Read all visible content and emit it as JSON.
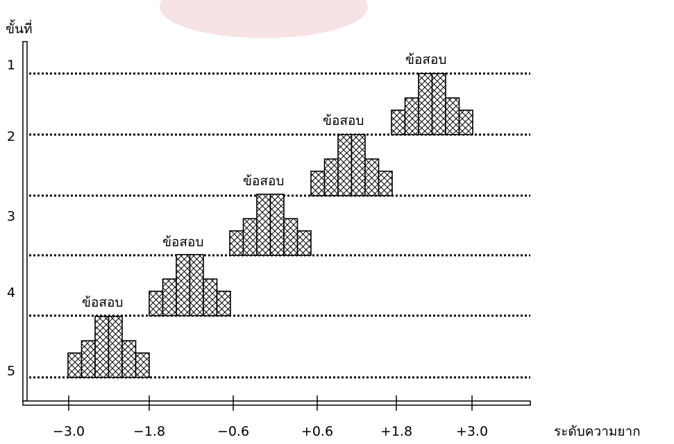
{
  "diagram": {
    "y_axis_label": "ขั้นที่",
    "x_axis_label": "ระดับความยาก",
    "levels": [
      "1",
      "2",
      "3",
      "4",
      "5"
    ],
    "x_ticks": [
      "−3.0",
      "−1.8",
      "−0.6",
      "+0.6",
      "+1.8",
      "+3.0"
    ],
    "item_banks": [
      {
        "label": "ข้อสอบ",
        "level": 5,
        "counts": [
          2,
          3,
          5,
          5,
          3,
          2
        ]
      },
      {
        "label": "ข้อสอบ",
        "level": 4,
        "counts": [
          2,
          3,
          5,
          5,
          3,
          2
        ]
      },
      {
        "label": "ข้อสอบ",
        "level": 3,
        "counts": [
          2,
          3,
          5,
          5,
          3,
          2
        ]
      },
      {
        "label": "ข้อสอบ",
        "level": 2,
        "counts": [
          2,
          3,
          5,
          5,
          3,
          2
        ]
      },
      {
        "label": "ข้อสอบ",
        "level": 1,
        "counts": [
          2,
          3,
          5,
          5,
          3,
          2
        ]
      }
    ],
    "colors": {
      "line": "#000000",
      "hatch": "#000000",
      "watermark": "#f3d6d6"
    }
  }
}
